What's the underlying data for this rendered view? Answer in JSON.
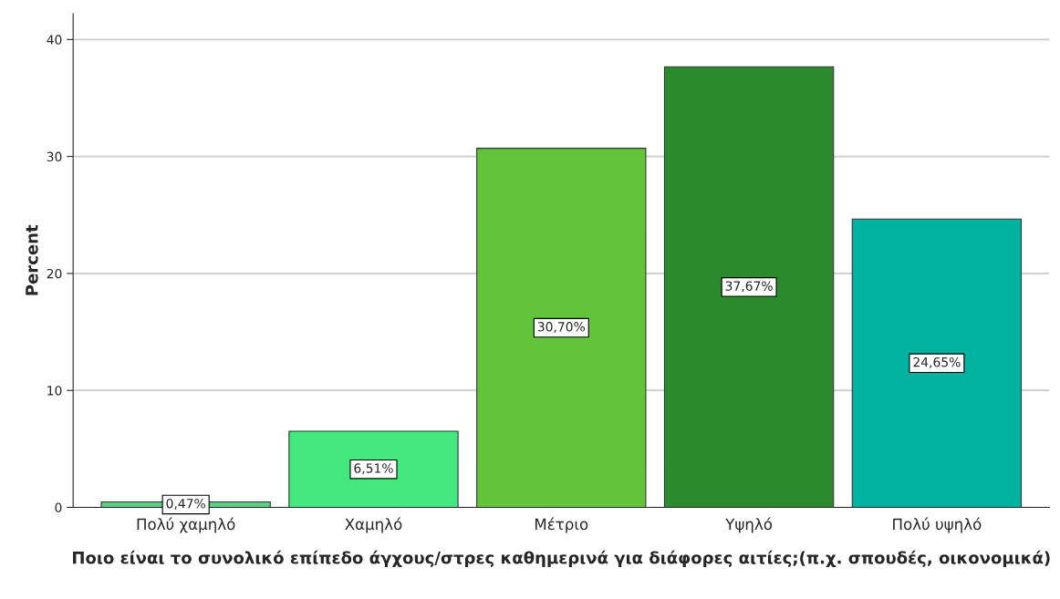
{
  "chart_data": {
    "type": "bar",
    "ylabel": "Percent",
    "xlabel": "Ποιο είναι το συνολικό επίπεδο άγχους/στρες καθημερινά για διάφορες αιτίες;(π.χ. σπουδές, οικονομικά)",
    "categories": [
      "Πολύ χαμηλό",
      "Χαμηλό",
      "Μέτριο",
      "Υψηλό",
      "Πολύ υψηλό"
    ],
    "values": [
      0.47,
      6.51,
      30.7,
      37.67,
      24.65
    ],
    "colors": [
      "#5ccf87",
      "#42e87b",
      "#62c43a",
      "#2b8a2b",
      "#00b3a0"
    ],
    "value_labels": [
      "0,47%",
      "6,51%",
      "30,70%",
      "37,67%",
      "24,65%"
    ],
    "ylim": [
      0,
      42.2
    ],
    "yticks": [
      0,
      10,
      20,
      30,
      40
    ],
    "grid": "y"
  }
}
